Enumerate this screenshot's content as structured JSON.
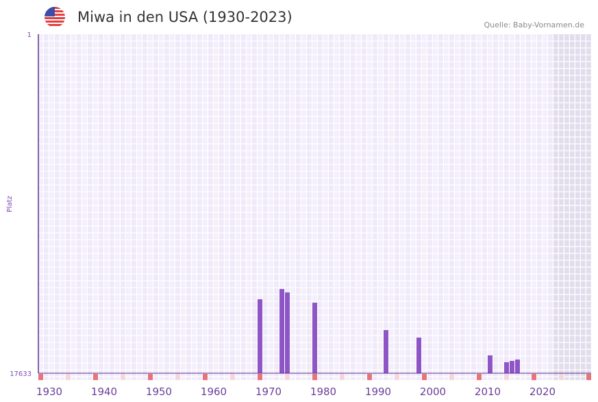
{
  "header": {
    "title": "Miwa in den USA (1930-2023)",
    "source": "Quelle: Baby-Vornamen.de",
    "flag_icon": "us-flag-icon"
  },
  "chart_data": {
    "type": "bar",
    "title": "Miwa in den USA (1930-2023)",
    "xlabel": "",
    "ylabel": "Platz",
    "xlim": [
      1930,
      2030
    ],
    "ylim": [
      17633,
      1
    ],
    "y_ticks": [
      "1",
      "17633"
    ],
    "x_ticks": [
      "1930",
      "1940",
      "1950",
      "1960",
      "1970",
      "1980",
      "1990",
      "2000",
      "2010",
      "2020"
    ],
    "data_range_end": 2023,
    "years": [
      1970,
      1974,
      1975,
      1980,
      1993,
      1999,
      2012,
      2015,
      2016,
      2017
    ],
    "ranks": [
      13785,
      13251,
      13429,
      13963,
      15388,
      15780,
      16706,
      17062,
      16991,
      16920
    ],
    "colors": {
      "bar": "#8e55c7",
      "decade_marker": "#e8737a",
      "half_decade_marker": "#f4d6de",
      "axis": "#5b2d8e"
    }
  }
}
